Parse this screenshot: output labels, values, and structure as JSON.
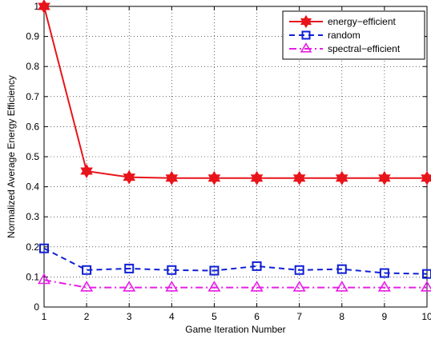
{
  "chart_data": {
    "type": "line",
    "xlabel": "Game Iteration Number",
    "ylabel": "Normalized Average Energy Efficiency",
    "xlim": [
      1,
      10
    ],
    "ylim": [
      0,
      1
    ],
    "x": [
      1,
      2,
      3,
      4,
      5,
      6,
      7,
      8,
      9,
      10
    ],
    "xticks": [
      "1",
      "2",
      "3",
      "4",
      "5",
      "6",
      "7",
      "8",
      "9",
      "10"
    ],
    "yticks": [
      "0",
      "0.1",
      "0.2",
      "0.3",
      "0.4",
      "0.5",
      "0.6",
      "0.7",
      "0.8",
      "0.9",
      "1"
    ],
    "grid": true,
    "legend_position": "top-right",
    "series": [
      {
        "name": "energy−efficient",
        "color": "#e8141b",
        "line_style": "solid",
        "marker": "hexagram",
        "values": [
          1.0,
          0.452,
          0.432,
          0.429,
          0.429,
          0.429,
          0.429,
          0.429,
          0.429,
          0.429
        ]
      },
      {
        "name": "random",
        "color": "#0f1fd6",
        "line_style": "dashed",
        "marker": "square",
        "values": [
          0.195,
          0.123,
          0.128,
          0.123,
          0.121,
          0.136,
          0.123,
          0.126,
          0.113,
          0.11
        ]
      },
      {
        "name": "spectral−efficient",
        "color": "#e61ee6",
        "line_style": "dashdot",
        "marker": "triangle",
        "values": [
          0.09,
          0.065,
          0.065,
          0.065,
          0.065,
          0.065,
          0.065,
          0.065,
          0.065,
          0.065
        ]
      }
    ]
  }
}
